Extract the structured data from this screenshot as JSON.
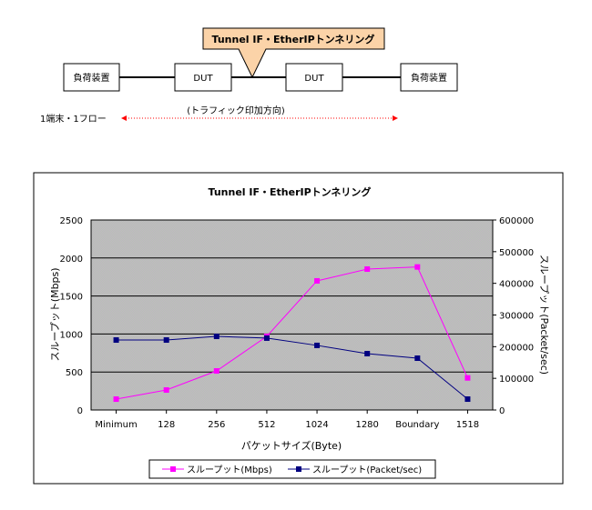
{
  "diagram": {
    "callout": "Tunnel IF・EtherIPトンネリング",
    "nodes": [
      "負荷装置",
      "DUT",
      "DUT",
      "負荷装置"
    ],
    "direction_label": "(トラフィック印加方向)",
    "flow_label": "1端末・1フロー",
    "callout_color": "#fbd3a8",
    "arrow_color": "#ff0000"
  },
  "chart_data": {
    "type": "line",
    "title": "Tunnel IF・EtherIPトンネリング",
    "xlabel": "パケットサイズ(Byte)",
    "ylabel": "スループット(Mbps)",
    "y2label": "スループット(Packet/sec)",
    "categories": [
      "Minimum",
      "128",
      "256",
      "512",
      "1024",
      "1280",
      "Boundary",
      "1518"
    ],
    "ylim": [
      0,
      2500
    ],
    "yticks": [
      "0",
      "500",
      "1000",
      "1500",
      "2000",
      "2500"
    ],
    "y2lim": [
      0,
      600000
    ],
    "y2ticks": [
      "0",
      "100000",
      "200000",
      "300000",
      "400000",
      "500000",
      "600000"
    ],
    "grid": true,
    "legend_position": "bottom",
    "series": [
      {
        "name": "スループット(Mbps)",
        "axis": "left",
        "color": "#ff00ff",
        "values": [
          143,
          263,
          514,
          969,
          1699,
          1854,
          1882,
          422
        ]
      },
      {
        "name": "スループット(Packet/sec)",
        "axis": "right",
        "color": "#000080",
        "values": [
          221000,
          221000,
          232500,
          227000,
          204000,
          178000,
          163600,
          34400
        ]
      }
    ]
  }
}
